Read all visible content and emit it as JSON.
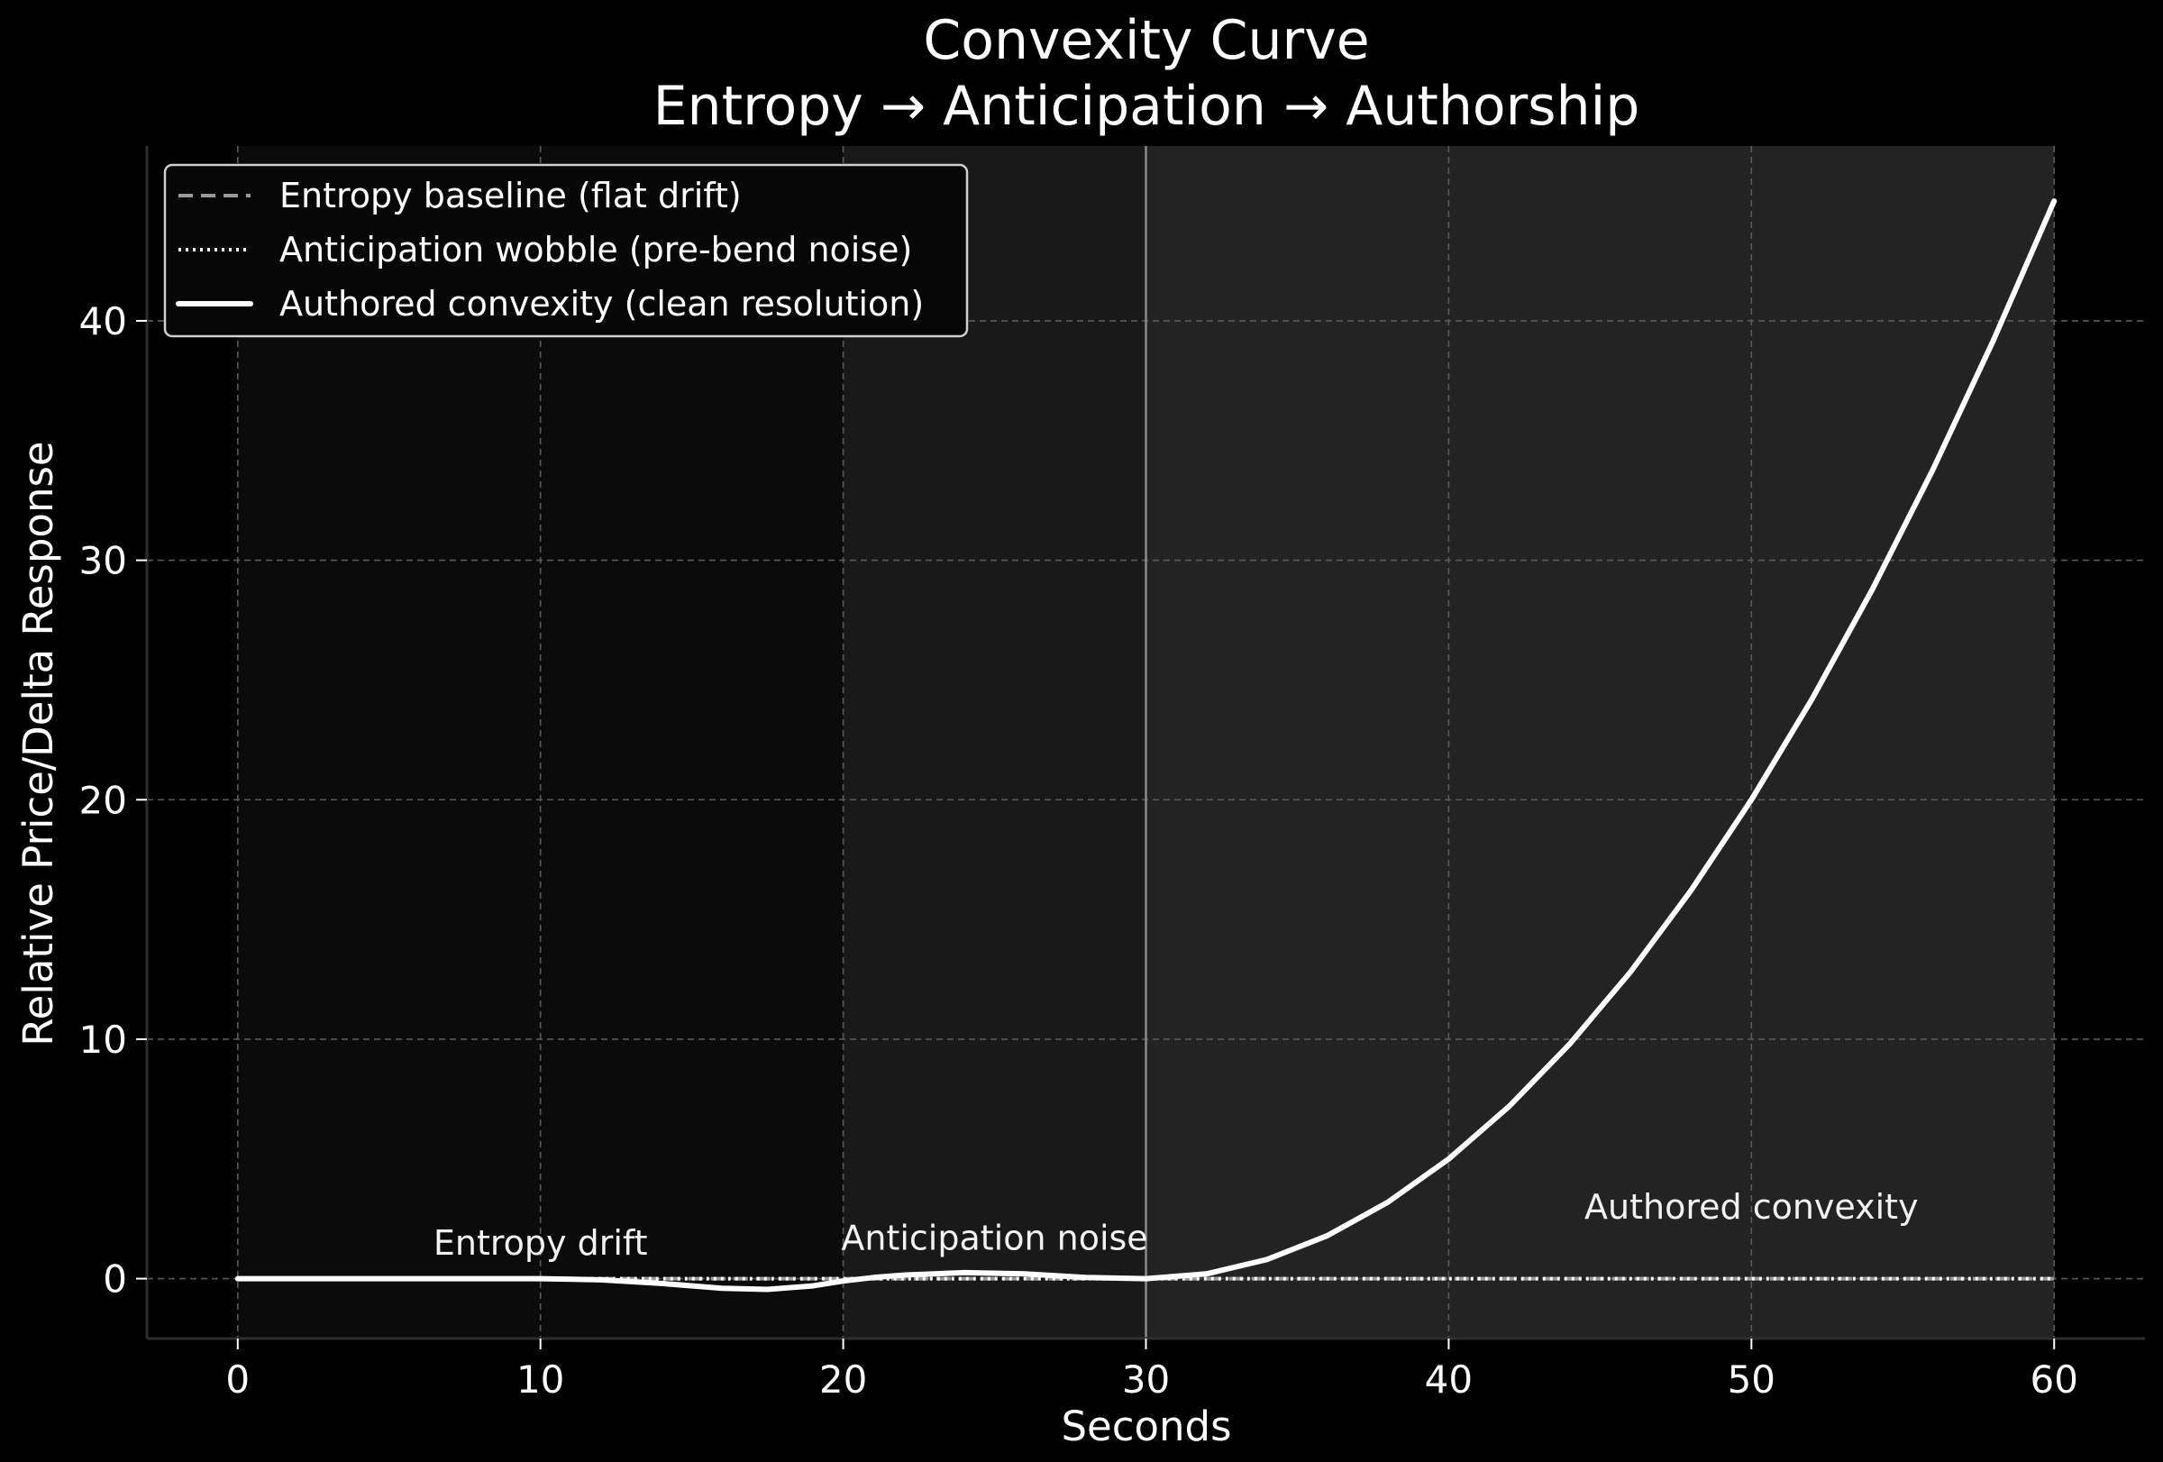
{
  "chart_data": {
    "type": "line",
    "title": "Convexity Curve",
    "subtitle": "Entropy → Anticipation → Authorship",
    "xlabel": "Seconds",
    "ylabel": "Relative Price/Delta Response",
    "xlim": [
      -3,
      63
    ],
    "ylim": [
      -2.5,
      47.3
    ],
    "x_ticks": [
      0,
      10,
      20,
      30,
      40,
      50,
      60
    ],
    "y_ticks": [
      0,
      10,
      20,
      30,
      40
    ],
    "grid": true,
    "legend_position": "top-left",
    "regions": [
      {
        "name": "entropy",
        "x_start": 0,
        "x_end": 20,
        "color": "#0b0b0b"
      },
      {
        "name": "anticipation",
        "x_start": 20,
        "x_end": 30,
        "color": "#191919"
      },
      {
        "name": "authorship",
        "x_start": 30,
        "x_end": 60,
        "color": "#232323"
      }
    ],
    "vlines": [
      30
    ],
    "series": [
      {
        "name": "Entropy baseline (flat drift)",
        "style": "dashed",
        "color": "#9a9a9a",
        "x": [
          0,
          60
        ],
        "y": [
          0,
          0
        ]
      },
      {
        "name": "Anticipation wobble (pre-bend noise)",
        "style": "dotted",
        "color": "#ffffff",
        "x": [
          0,
          60
        ],
        "y": [
          0,
          0
        ]
      },
      {
        "name": "Authored convexity (clean resolution)",
        "style": "solid",
        "color": "#ffffff",
        "x": [
          0,
          5,
          10,
          12,
          14,
          16,
          17.5,
          19,
          20,
          21,
          22,
          24,
          26,
          28,
          30,
          32,
          34,
          36,
          38,
          40,
          42,
          44,
          46,
          48,
          50,
          52,
          54,
          56,
          58,
          60
        ],
        "y": [
          0,
          0,
          0,
          -0.05,
          -0.2,
          -0.4,
          -0.45,
          -0.3,
          -0.1,
          0.05,
          0.15,
          0.25,
          0.2,
          0.05,
          0,
          0.2,
          0.8,
          1.8,
          3.2,
          5,
          7.2,
          9.8,
          12.8,
          16.2,
          20,
          24.2,
          28.8,
          33.8,
          39.2,
          45
        ]
      }
    ],
    "annotations": [
      {
        "text": "Entropy drift",
        "x": 10,
        "y": 1.0
      },
      {
        "text": "Anticipation noise",
        "x": 25,
        "y": 1.2
      },
      {
        "text": "Authored convexity",
        "x": 50,
        "y": 2.5
      }
    ]
  }
}
